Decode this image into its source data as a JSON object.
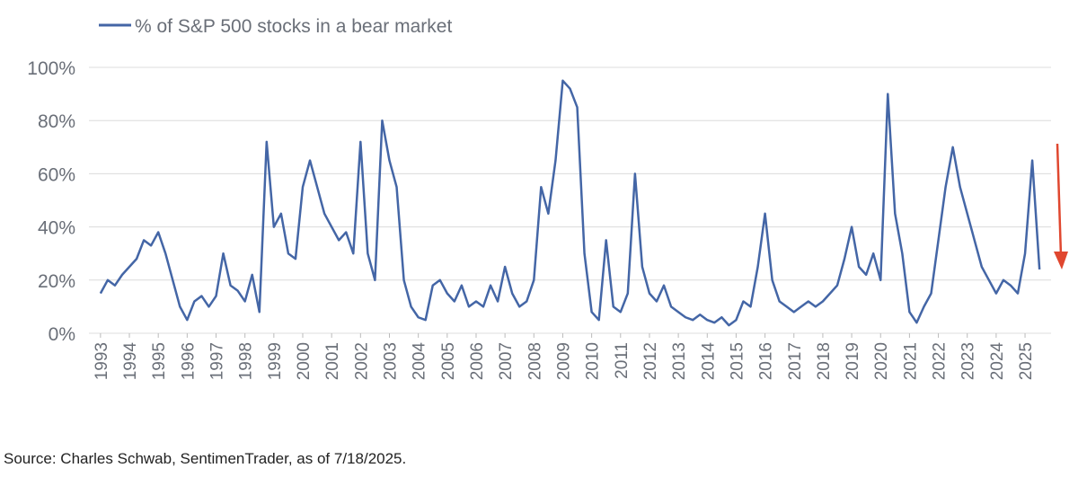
{
  "chart_data": {
    "type": "line",
    "source": "Source: Charles Schwab, SentimenTrader, as of 7/18/2025.",
    "xlim": [
      1992.6,
      2025.9
    ],
    "xticks": [
      1993,
      1994,
      1995,
      1996,
      1997,
      1998,
      1999,
      2000,
      2001,
      2002,
      2003,
      2004,
      2005,
      2006,
      2007,
      2008,
      2009,
      2010,
      2011,
      2012,
      2013,
      2014,
      2015,
      2016,
      2017,
      2018,
      2019,
      2020,
      2021,
      2022,
      2023,
      2024,
      2025
    ],
    "ylim": [
      0,
      100
    ],
    "yticks": [
      {
        "value": 0,
        "label": "0%"
      },
      {
        "value": 20,
        "label": "20%"
      },
      {
        "value": 40,
        "label": "40%"
      },
      {
        "value": 60,
        "label": "60%"
      },
      {
        "value": 80,
        "label": "80%"
      },
      {
        "value": 100,
        "label": "100%"
      }
    ],
    "grid": true,
    "x": [
      1993,
      1993.25,
      1993.5,
      1993.75,
      1994,
      1994.25,
      1994.5,
      1994.75,
      1995,
      1995.25,
      1995.5,
      1995.75,
      1996,
      1996.25,
      1996.5,
      1996.75,
      1997,
      1997.25,
      1997.5,
      1997.75,
      1998,
      1998.25,
      1998.5,
      1998.75,
      1999,
      1999.25,
      1999.5,
      1999.75,
      2000,
      2000.25,
      2000.5,
      2000.75,
      2001,
      2001.25,
      2001.5,
      2001.75,
      2002,
      2002.25,
      2002.5,
      2002.75,
      2003,
      2003.25,
      2003.5,
      2003.75,
      2004,
      2004.25,
      2004.5,
      2004.75,
      2005,
      2005.25,
      2005.5,
      2005.75,
      2006,
      2006.25,
      2006.5,
      2006.75,
      2007,
      2007.25,
      2007.5,
      2007.75,
      2008,
      2008.25,
      2008.5,
      2008.75,
      2009,
      2009.25,
      2009.5,
      2009.75,
      2010,
      2010.25,
      2010.5,
      2010.75,
      2011,
      2011.25,
      2011.5,
      2011.75,
      2012,
      2012.25,
      2012.5,
      2012.75,
      2013,
      2013.25,
      2013.5,
      2013.75,
      2014,
      2014.25,
      2014.5,
      2014.75,
      2015,
      2015.25,
      2015.5,
      2015.75,
      2016,
      2016.25,
      2016.5,
      2016.75,
      2017,
      2017.25,
      2017.5,
      2017.75,
      2018,
      2018.25,
      2018.5,
      2018.75,
      2019,
      2019.25,
      2019.5,
      2019.75,
      2020,
      2020.25,
      2020.5,
      2020.75,
      2021,
      2021.25,
      2021.5,
      2021.75,
      2022,
      2022.25,
      2022.5,
      2022.75,
      2023,
      2023.25,
      2023.5,
      2023.75,
      2024,
      2024.25,
      2024.5,
      2024.75,
      2025,
      2025.25,
      2025.5
    ],
    "series": [
      {
        "name": "% of S&P 500 stocks in a bear market",
        "color": "#4466a6",
        "values": [
          15,
          20,
          18,
          22,
          25,
          28,
          35,
          33,
          38,
          30,
          20,
          10,
          5,
          12,
          14,
          10,
          14,
          30,
          18,
          16,
          12,
          22,
          8,
          72,
          40,
          45,
          30,
          28,
          55,
          65,
          55,
          45,
          40,
          35,
          38,
          30,
          72,
          30,
          20,
          80,
          65,
          55,
          20,
          10,
          6,
          5,
          18,
          20,
          15,
          12,
          18,
          10,
          12,
          10,
          18,
          12,
          25,
          15,
          10,
          12,
          20,
          55,
          45,
          65,
          95,
          92,
          85,
          30,
          8,
          5,
          35,
          10,
          8,
          15,
          60,
          25,
          15,
          12,
          18,
          10,
          8,
          6,
          5,
          7,
          5,
          4,
          6,
          3,
          5,
          12,
          10,
          25,
          45,
          20,
          12,
          10,
          8,
          10,
          12,
          10,
          12,
          15,
          18,
          28,
          40,
          25,
          22,
          30,
          20,
          90,
          45,
          30,
          8,
          4,
          10,
          15,
          35,
          55,
          70,
          55,
          45,
          35,
          25,
          20,
          15,
          20,
          18,
          15,
          30,
          65,
          24
        ]
      }
    ]
  }
}
